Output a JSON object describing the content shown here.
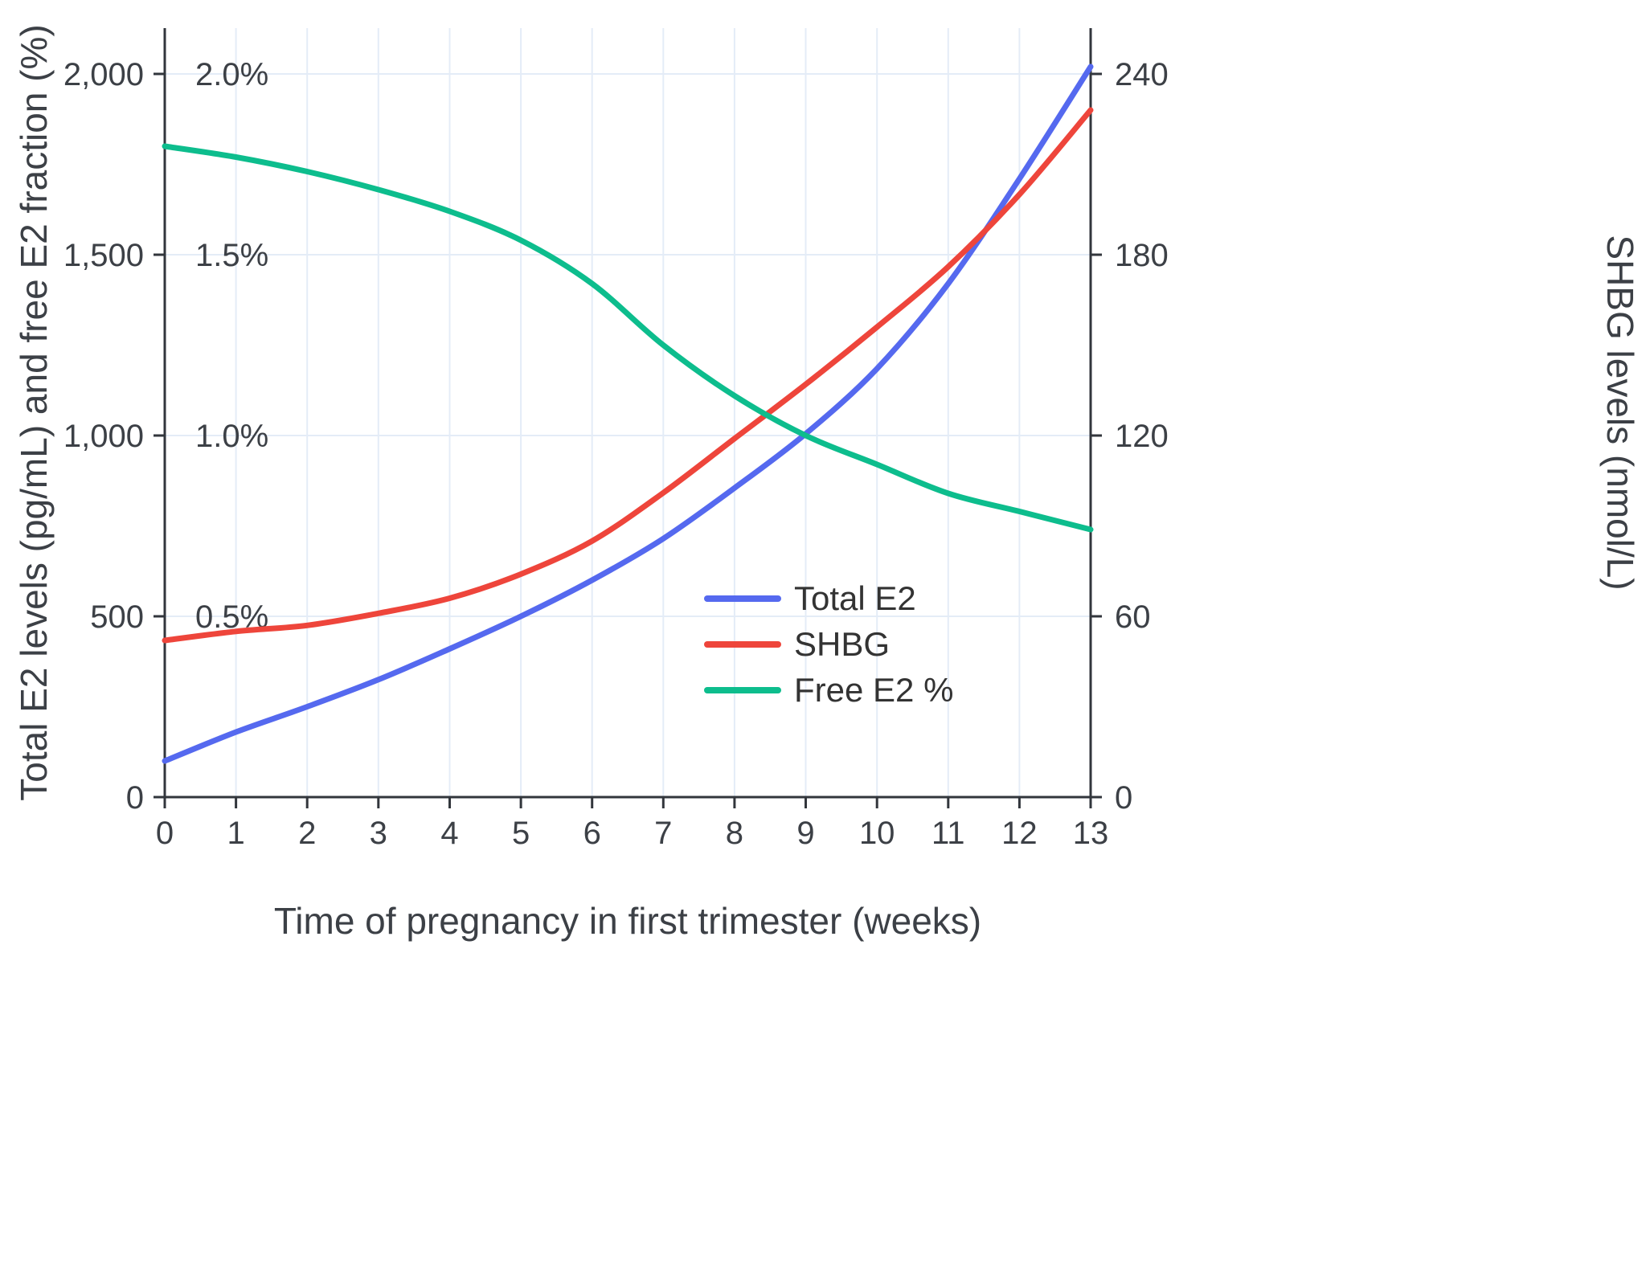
{
  "figure": {
    "background": "#ffffff"
  },
  "chart_data": {
    "type": "line",
    "title": "",
    "xlabel": "Time of pregnancy in first trimester (weeks)",
    "ylabel_left": "Total E2 levels (pg/mL) and free E2 fraction (%)",
    "ylabel_right": "SHBG levels (nmol/L)",
    "x": [
      0,
      1,
      2,
      3,
      4,
      5,
      6,
      7,
      8,
      9,
      10,
      11,
      12,
      13
    ],
    "x_tick_labels": [
      "0",
      "1",
      "2",
      "3",
      "4",
      "5",
      "6",
      "7",
      "8",
      "9",
      "10",
      "11",
      "12",
      "13"
    ],
    "xlim": [
      0,
      13
    ],
    "grid": true,
    "left_axis": {
      "ticks": [
        0,
        500,
        1000,
        1500,
        2000
      ],
      "tick_labels": [
        "0",
        "500",
        "1,000",
        "1,500",
        "2,000"
      ],
      "display_max": 2127
    },
    "percent_labels": [
      {
        "value_pct": 0.5,
        "label": "0.5%"
      },
      {
        "value_pct": 1.0,
        "label": "1.0%"
      },
      {
        "value_pct": 1.5,
        "label": "1.5%"
      },
      {
        "value_pct": 2.0,
        "label": "2.0%"
      }
    ],
    "right_axis": {
      "ticks": [
        0,
        60,
        120,
        180,
        240
      ],
      "tick_labels": [
        "0",
        "60",
        "120",
        "180",
        "240"
      ]
    },
    "legend_position": "inside-center-right",
    "series": [
      {
        "name": "Total E2",
        "axis": "left",
        "unit": "pg/mL",
        "color": "#5569ef",
        "values": [
          100,
          180,
          250,
          325,
          410,
          500,
          600,
          715,
          855,
          1005,
          1185,
          1420,
          1710,
          2020
        ]
      },
      {
        "name": "SHBG",
        "axis": "right",
        "unit": "nmol/L",
        "color": "#ee453b",
        "values": [
          52,
          55,
          57,
          61,
          66,
          74,
          85,
          101,
          119,
          137,
          156,
          176,
          200,
          228
        ]
      },
      {
        "name": "Free E2 %",
        "axis": "percent",
        "unit": "%",
        "color": "#0dbd8d",
        "values": [
          1.8,
          1.77,
          1.73,
          1.68,
          1.62,
          1.54,
          1.42,
          1.25,
          1.11,
          1.0,
          0.92,
          0.84,
          0.79,
          0.74
        ]
      }
    ],
    "colors": {
      "grid": "#e4ecf7",
      "axis": "#32363c",
      "text": "#3c4046"
    }
  }
}
